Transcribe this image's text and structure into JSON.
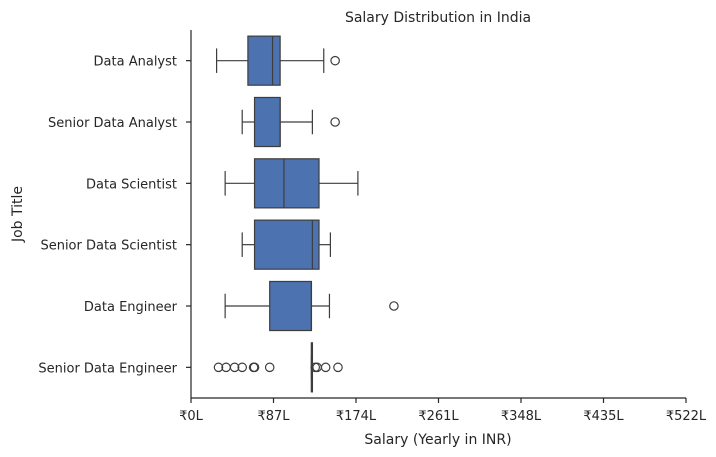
{
  "chart_data": {
    "type": "boxplot",
    "orientation": "horizontal",
    "title": "Salary Distribution in India",
    "xlabel": "Salary (Yearly in INR)",
    "ylabel": "Job Title",
    "xlim": [
      0,
      522
    ],
    "xticks": [
      0,
      87,
      174,
      261,
      348,
      435,
      522
    ],
    "xtick_labels": [
      "₹0L",
      "₹87L",
      "₹174L",
      "₹261L",
      "₹348L",
      "₹435L",
      "₹522L"
    ],
    "categories": [
      "Data Analyst",
      "Senior Data Analyst",
      "Data Scientist",
      "Senior Data Scientist",
      "Data Engineer",
      "Senior Data Engineer"
    ],
    "box_color": "#4c72b0",
    "boxes": [
      {
        "category": "Data Analyst",
        "whislo": 27,
        "q1": 60,
        "med": 86,
        "q3": 94,
        "whishi": 140,
        "fliers": [
          152
        ]
      },
      {
        "category": "Senior Data Analyst",
        "whislo": 54,
        "q1": 67,
        "med": 94,
        "q3": 94,
        "whishi": 128,
        "fliers": [
          152
        ]
      },
      {
        "category": "Data Scientist",
        "whislo": 36,
        "q1": 67,
        "med": 98,
        "q3": 135,
        "whishi": 176,
        "fliers": []
      },
      {
        "category": "Senior Data Scientist",
        "whislo": 54,
        "q1": 67,
        "med": 128,
        "q3": 135,
        "whishi": 147,
        "fliers": []
      },
      {
        "category": "Data Engineer",
        "whislo": 36,
        "q1": 83,
        "med": 127,
        "q3": 127,
        "whishi": 146,
        "fliers": [
          214
        ]
      },
      {
        "category": "Senior Data Engineer",
        "whislo": 127,
        "q1": 127,
        "med": 127,
        "q3": 128,
        "whishi": 128,
        "fliers": [
          29,
          37,
          46,
          54,
          66,
          67,
          83,
          131,
          133,
          142,
          155
        ]
      }
    ],
    "grid": false
  }
}
